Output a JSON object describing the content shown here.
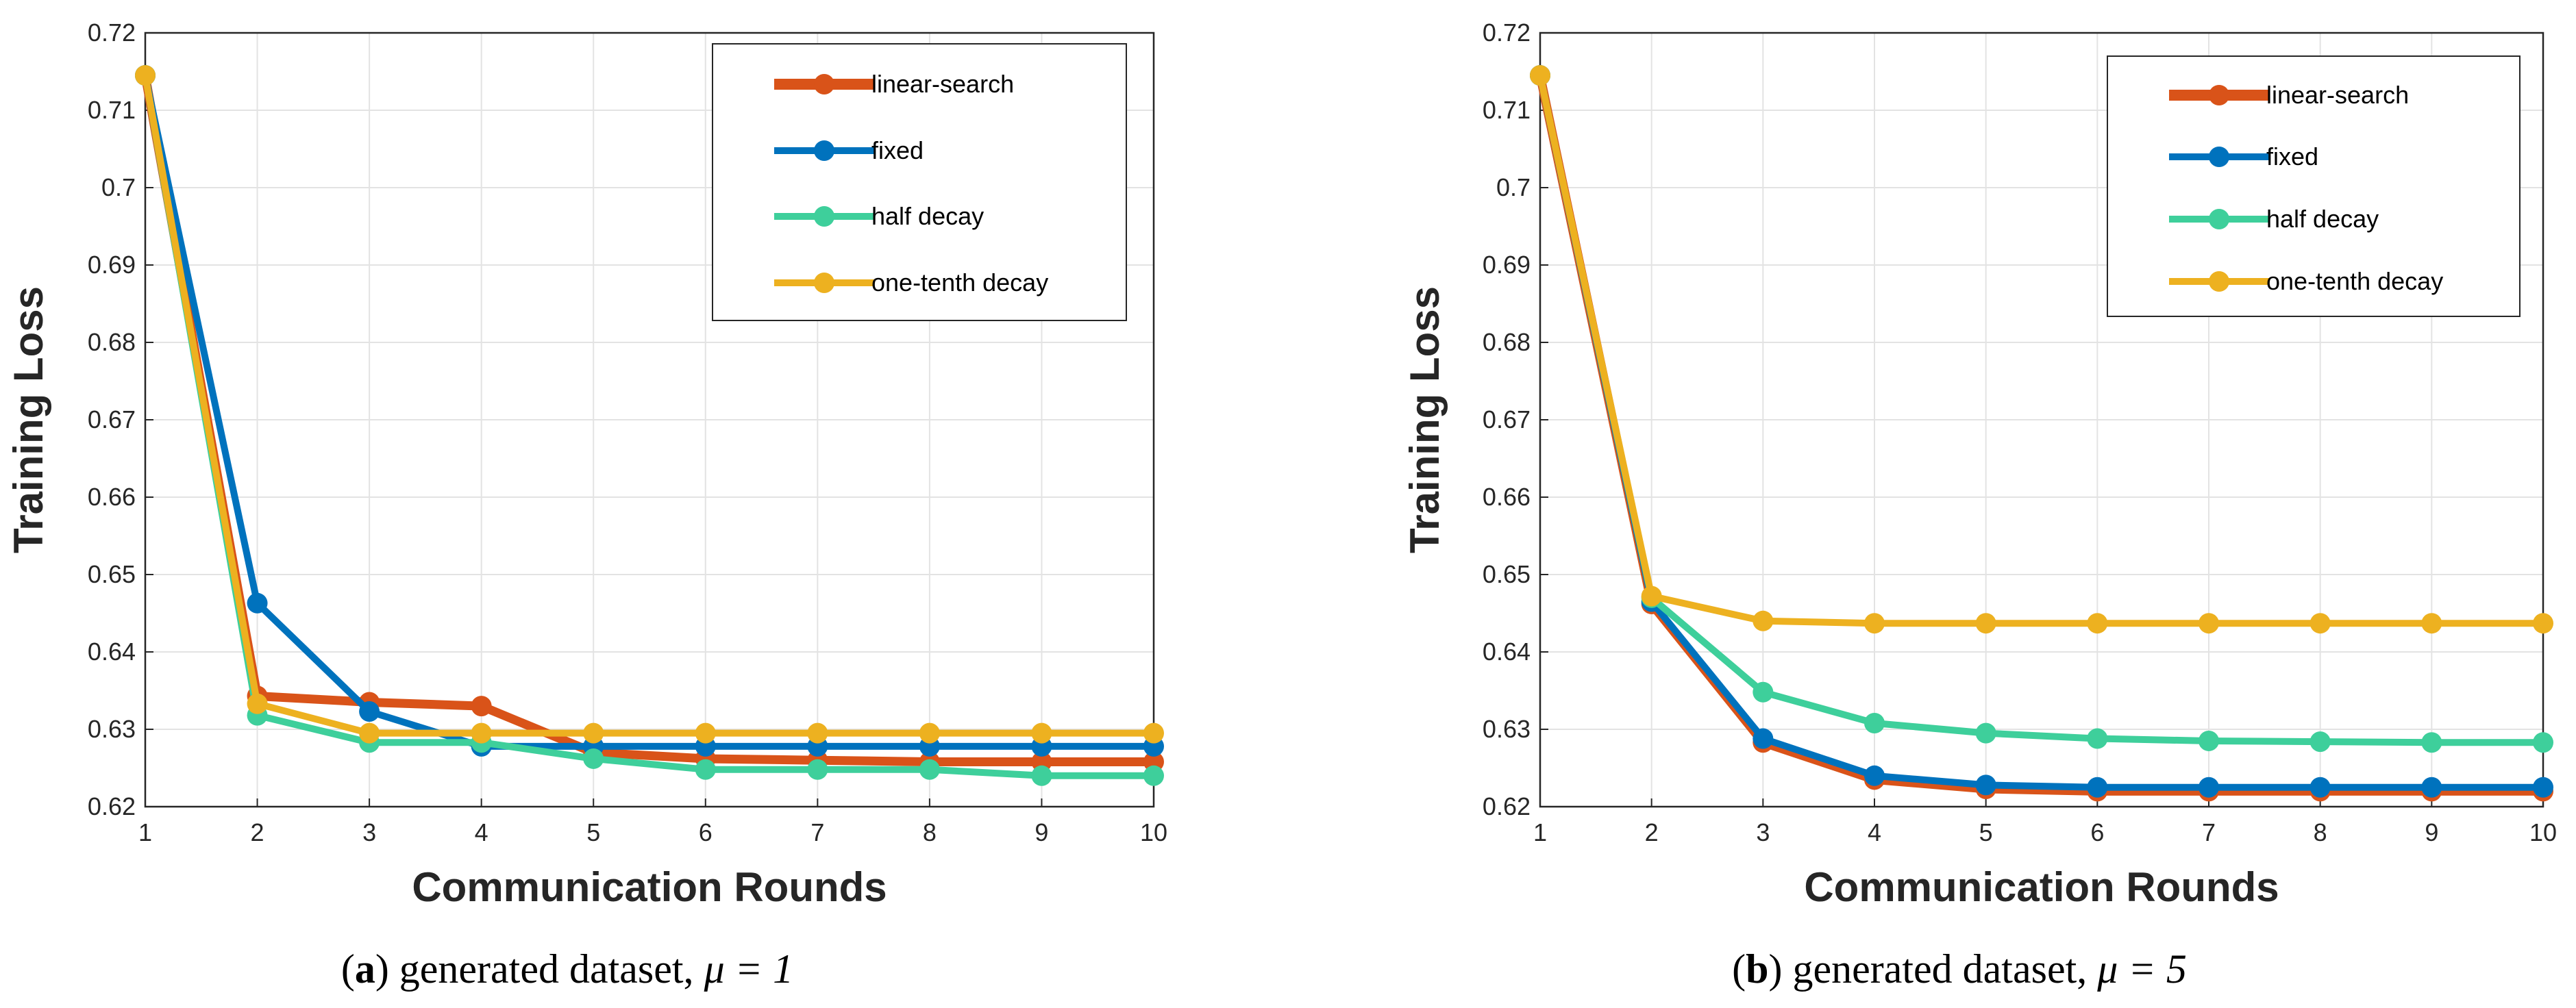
{
  "chart_data": [
    {
      "type": "line",
      "xlabel": "Communication Rounds",
      "ylabel": "Training Loss",
      "x": [
        1,
        2,
        3,
        4,
        5,
        6,
        7,
        8,
        9,
        10
      ],
      "xlim": [
        1,
        10
      ],
      "ylim": [
        0.62,
        0.72
      ],
      "xticks": [
        "1",
        "2",
        "3",
        "4",
        "5",
        "6",
        "7",
        "8",
        "9",
        "10"
      ],
      "yticks": [
        "0.62",
        "0.63",
        "0.64",
        "0.65",
        "0.66",
        "0.67",
        "0.68",
        "0.69",
        "0.7",
        "0.71",
        "0.72"
      ],
      "grid": true,
      "legend_position": "top-right",
      "caption": {
        "label": "a",
        "text": "generated dataset,",
        "math": "μ = 1"
      },
      "series": [
        {
          "name": "linear-search",
          "color": "#D95319",
          "values": [
            0.7145,
            0.6343,
            0.6335,
            0.633,
            0.627,
            0.6262,
            0.626,
            0.6258,
            0.6258,
            0.6258
          ]
        },
        {
          "name": "fixed",
          "color": "#0072BD",
          "values": [
            0.7145,
            0.6463,
            0.6323,
            0.6278,
            0.6278,
            0.6278,
            0.6278,
            0.6278,
            0.6278,
            0.6278
          ]
        },
        {
          "name": "half decay",
          "color": "#3ECF9B",
          "values": [
            0.7145,
            0.6318,
            0.6283,
            0.6283,
            0.6262,
            0.6248,
            0.6248,
            0.6248,
            0.624,
            0.624
          ]
        },
        {
          "name": "one-tenth decay",
          "color": "#EDB120",
          "values": [
            0.7145,
            0.6333,
            0.6295,
            0.6295,
            0.6295,
            0.6295,
            0.6295,
            0.6295,
            0.6295,
            0.6295
          ]
        }
      ]
    },
    {
      "type": "line",
      "xlabel": "Communication Rounds",
      "ylabel": "Training Loss",
      "x": [
        1,
        2,
        3,
        4,
        5,
        6,
        7,
        8,
        9,
        10
      ],
      "xlim": [
        1,
        10
      ],
      "ylim": [
        0.62,
        0.72
      ],
      "xticks": [
        "1",
        "2",
        "3",
        "4",
        "5",
        "6",
        "7",
        "8",
        "9",
        "10"
      ],
      "yticks": [
        "0.62",
        "0.63",
        "0.64",
        "0.65",
        "0.66",
        "0.67",
        "0.68",
        "0.69",
        "0.7",
        "0.71",
        "0.72"
      ],
      "grid": true,
      "legend_position": "top-right",
      "caption": {
        "label": "b",
        "text": "generated dataset,",
        "math": "μ = 5"
      },
      "series": [
        {
          "name": "linear-search",
          "color": "#D95319",
          "values": [
            0.7145,
            0.6462,
            0.6283,
            0.6235,
            0.6223,
            0.622,
            0.622,
            0.622,
            0.622,
            0.622
          ]
        },
        {
          "name": "fixed",
          "color": "#0072BD",
          "values": [
            0.7145,
            0.6465,
            0.6288,
            0.624,
            0.6228,
            0.6225,
            0.6225,
            0.6225,
            0.6225,
            0.6225
          ]
        },
        {
          "name": "half decay",
          "color": "#3ECF9B",
          "values": [
            0.7145,
            0.647,
            0.6348,
            0.6308,
            0.6295,
            0.6288,
            0.6285,
            0.6284,
            0.6283,
            0.6283
          ]
        },
        {
          "name": "one-tenth decay",
          "color": "#EDB120",
          "values": [
            0.7145,
            0.6472,
            0.644,
            0.6437,
            0.6437,
            0.6437,
            0.6437,
            0.6437,
            0.6437,
            0.6437
          ]
        }
      ]
    }
  ]
}
